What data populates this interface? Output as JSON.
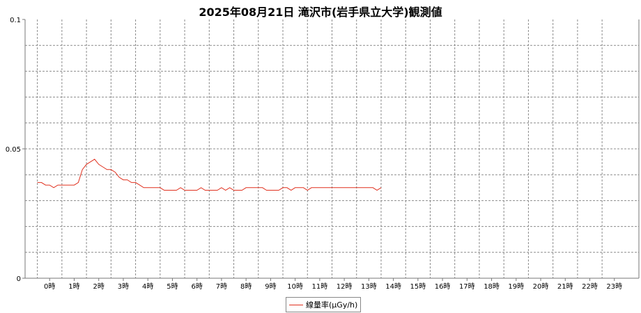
{
  "chart_data": {
    "type": "line",
    "title": "2025年08月21日 滝沢市(岩手県立大学)観測値",
    "xlabel": "",
    "ylabel": "",
    "ylim": [
      0,
      0.1
    ],
    "xlim": [
      0,
      24
    ],
    "y_ticks": [
      "0",
      "0.05",
      "0.1"
    ],
    "x_ticks": [
      "0時",
      "1時",
      "2時",
      "3時",
      "4時",
      "5時",
      "6時",
      "7時",
      "8時",
      "9時",
      "10時",
      "11時",
      "12時",
      "13時",
      "14時",
      "15時",
      "16時",
      "17時",
      "18時",
      "19時",
      "20時",
      "21時",
      "22時",
      "23時"
    ],
    "grid": true,
    "legend_position": "bottom-center",
    "series": [
      {
        "name": "線量率(μGy/h)",
        "color": "#e0301e",
        "x": [
          -0.5,
          -0.333,
          -0.167,
          0.0,
          0.167,
          0.333,
          0.5,
          0.667,
          0.833,
          1.0,
          1.167,
          1.333,
          1.5,
          1.667,
          1.833,
          2.0,
          2.167,
          2.333,
          2.5,
          2.667,
          2.833,
          3.0,
          3.167,
          3.333,
          3.5,
          3.667,
          3.833,
          4.0,
          4.167,
          4.333,
          4.5,
          4.667,
          4.833,
          5.0,
          5.167,
          5.333,
          5.5,
          5.667,
          5.833,
          6.0,
          6.167,
          6.333,
          6.5,
          6.667,
          6.833,
          7.0,
          7.167,
          7.333,
          7.5,
          7.667,
          7.833,
          8.0,
          8.167,
          8.333,
          8.5,
          8.667,
          8.833,
          9.0,
          9.167,
          9.333,
          9.5,
          9.667,
          9.833,
          10.0,
          10.167,
          10.333,
          10.5,
          10.667,
          10.833,
          11.0,
          11.167,
          11.333,
          11.5,
          11.667,
          11.833,
          12.0,
          12.167,
          12.333,
          12.5,
          12.667,
          12.833,
          13.0,
          13.167,
          13.333,
          13.5
        ],
        "values": [
          0.037,
          0.037,
          0.036,
          0.036,
          0.035,
          0.036,
          0.036,
          0.036,
          0.036,
          0.036,
          0.037,
          0.042,
          0.044,
          0.045,
          0.046,
          0.044,
          0.043,
          0.042,
          0.042,
          0.041,
          0.039,
          0.038,
          0.038,
          0.037,
          0.037,
          0.036,
          0.035,
          0.035,
          0.035,
          0.035,
          0.035,
          0.034,
          0.034,
          0.034,
          0.034,
          0.035,
          0.034,
          0.034,
          0.034,
          0.034,
          0.035,
          0.034,
          0.034,
          0.034,
          0.034,
          0.035,
          0.034,
          0.035,
          0.034,
          0.034,
          0.034,
          0.035,
          0.035,
          0.035,
          0.035,
          0.035,
          0.034,
          0.034,
          0.034,
          0.034,
          0.035,
          0.035,
          0.034,
          0.035,
          0.035,
          0.035,
          0.034,
          0.035,
          0.035,
          0.035,
          0.035,
          0.035,
          0.035,
          0.035,
          0.035,
          0.035,
          0.035,
          0.035,
          0.035,
          0.035,
          0.035,
          0.035,
          0.035,
          0.034,
          0.035
        ]
      }
    ]
  }
}
